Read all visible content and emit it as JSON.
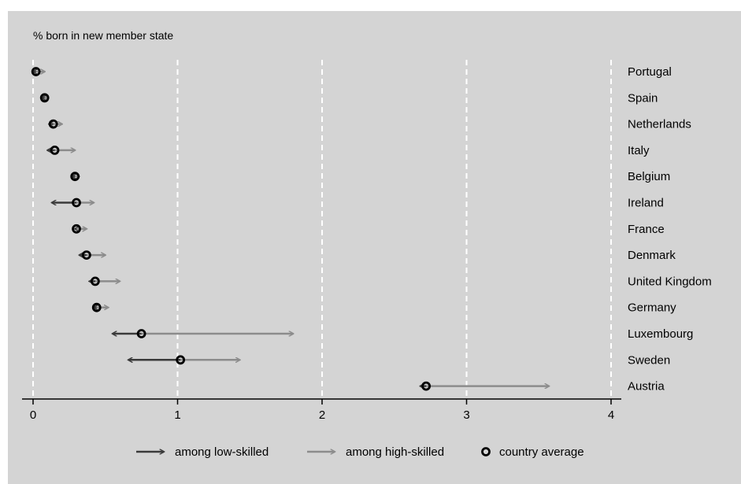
{
  "chart_data": {
    "type": "dumbbell-arrow",
    "title": "% born in new member state",
    "xlim": [
      0,
      4
    ],
    "xticks": [
      0,
      1,
      2,
      3,
      4
    ],
    "xtick_labels": [
      "0",
      "1",
      "2",
      "3",
      "4"
    ],
    "grid": "vertical dashed white",
    "legend_position": "bottom",
    "colors": {
      "background": "#d4d4d4",
      "low": "#3a3a3a",
      "high": "#8c8c8c",
      "average": "#000000",
      "grid": "#ffffff"
    },
    "series": [
      {
        "name": "among low-skilled",
        "key": "low"
      },
      {
        "name": "among high-skilled",
        "key": "high"
      },
      {
        "name": "country average",
        "key": "average"
      }
    ],
    "categories": [
      "Portugal",
      "Spain",
      "Netherlands",
      "Italy",
      "Belgium",
      "Ireland",
      "France",
      "Denmark",
      "United Kingdom",
      "Germany",
      "Luxembourg",
      "Sweden",
      "Austria"
    ],
    "values": {
      "average": [
        0.02,
        0.08,
        0.14,
        0.15,
        0.29,
        0.3,
        0.3,
        0.37,
        0.43,
        0.44,
        0.75,
        1.02,
        2.72
      ],
      "low": [
        0.0,
        0.06,
        0.11,
        0.1,
        0.27,
        0.13,
        0.29,
        0.32,
        0.39,
        0.42,
        0.55,
        0.66,
        2.68
      ],
      "high": [
        0.08,
        0.1,
        0.2,
        0.29,
        0.32,
        0.42,
        0.37,
        0.5,
        0.6,
        0.52,
        1.8,
        1.43,
        3.57
      ]
    }
  }
}
